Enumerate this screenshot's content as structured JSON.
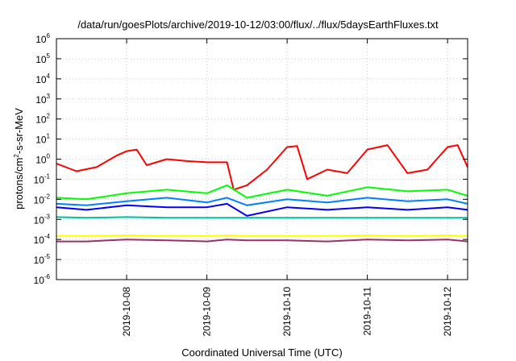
{
  "chart_data": {
    "type": "line",
    "title": "/data/run/goesPlots/archive/2019-10-12/03:00/flux/../flux/5daysEarthFluxes.txt",
    "xlabel": "Coordinated Universal Time (UTC)",
    "ylabel": "protons/cm²-s-sr-MeV",
    "yscale": "log",
    "ylim": [
      1e-06,
      1000000.0
    ],
    "xlim": [
      "2019-10-07T03:00",
      "2019-10-12T06:00"
    ],
    "x_ticks": [
      "2019-10-08",
      "2019-10-09",
      "2019-10-10",
      "2019-10-11",
      "2019-10-12"
    ],
    "y_ticks": [
      {
        "base": "10",
        "exp": "6"
      },
      {
        "base": "10",
        "exp": "5"
      },
      {
        "base": "10",
        "exp": "4"
      },
      {
        "base": "10",
        "exp": "3"
      },
      {
        "base": "10",
        "exp": "2"
      },
      {
        "base": "10",
        "exp": "1"
      },
      {
        "base": "10",
        "exp": "0"
      },
      {
        "base": "10",
        "exp": "-1"
      },
      {
        "base": "10",
        "exp": "-2"
      },
      {
        "base": "10",
        "exp": "-3"
      },
      {
        "base": "10",
        "exp": "-4"
      },
      {
        "base": "10",
        "exp": "-5"
      },
      {
        "base": "10",
        "exp": "-6"
      }
    ],
    "grid": true,
    "series": [
      {
        "color": "#ff0000",
        "x": [
          "2019-10-07T03:00",
          "2019-10-07T09:00",
          "2019-10-07T15:00",
          "2019-10-07T21:00",
          "2019-10-08T00:00",
          "2019-10-08T03:00",
          "2019-10-08T06:00",
          "2019-10-08T12:00",
          "2019-10-08T18:00",
          "2019-10-09T00:00",
          "2019-10-09T06:00",
          "2019-10-09T08:00",
          "2019-10-09T12:00",
          "2019-10-09T18:00",
          "2019-10-10T00:00",
          "2019-10-10T03:00",
          "2019-10-10T06:00",
          "2019-10-10T12:00",
          "2019-10-10T18:00",
          "2019-10-11T00:00",
          "2019-10-11T06:00",
          "2019-10-11T12:00",
          "2019-10-11T18:00",
          "2019-10-12T00:00",
          "2019-10-12T03:00",
          "2019-10-12T06:00"
        ],
        "y": [
          0.6,
          0.25,
          0.4,
          1.5,
          2.5,
          3.0,
          0.5,
          1.0,
          0.8,
          0.7,
          0.7,
          0.03,
          0.05,
          0.3,
          4.0,
          4.5,
          0.1,
          0.3,
          0.2,
          3.0,
          5.0,
          0.2,
          0.3,
          4.0,
          5.0,
          0.4
        ]
      },
      {
        "color": "#00ff00",
        "x": [
          "2019-10-07T03:00",
          "2019-10-07T12:00",
          "2019-10-08T00:00",
          "2019-10-08T12:00",
          "2019-10-09T00:00",
          "2019-10-09T06:00",
          "2019-10-09T12:00",
          "2019-10-10T00:00",
          "2019-10-10T12:00",
          "2019-10-11T00:00",
          "2019-10-11T12:00",
          "2019-10-12T00:00",
          "2019-10-12T06:00"
        ],
        "y": [
          0.012,
          0.01,
          0.02,
          0.03,
          0.02,
          0.05,
          0.012,
          0.03,
          0.015,
          0.04,
          0.025,
          0.03,
          0.015
        ]
      },
      {
        "color": "#0080ff",
        "x": [
          "2019-10-07T03:00",
          "2019-10-07T12:00",
          "2019-10-08T00:00",
          "2019-10-08T12:00",
          "2019-10-09T00:00",
          "2019-10-09T06:00",
          "2019-10-09T12:00",
          "2019-10-10T00:00",
          "2019-10-10T12:00",
          "2019-10-11T00:00",
          "2019-10-11T12:00",
          "2019-10-12T00:00",
          "2019-10-12T06:00"
        ],
        "y": [
          0.006,
          0.005,
          0.008,
          0.012,
          0.007,
          0.012,
          0.005,
          0.01,
          0.007,
          0.012,
          0.008,
          0.01,
          0.006
        ]
      },
      {
        "color": "#0000ff",
        "x": [
          "2019-10-07T03:00",
          "2019-10-07T12:00",
          "2019-10-08T00:00",
          "2019-10-08T12:00",
          "2019-10-09T00:00",
          "2019-10-09T06:00",
          "2019-10-09T12:00",
          "2019-10-10T00:00",
          "2019-10-10T12:00",
          "2019-10-11T00:00",
          "2019-10-11T12:00",
          "2019-10-12T00:00",
          "2019-10-12T06:00"
        ],
        "y": [
          0.004,
          0.003,
          0.005,
          0.004,
          0.004,
          0.006,
          0.0015,
          0.004,
          0.003,
          0.004,
          0.003,
          0.004,
          0.003
        ]
      },
      {
        "color": "#00c0a0",
        "x": [
          "2019-10-07T03:00",
          "2019-10-07T12:00",
          "2019-10-08T00:00",
          "2019-10-08T12:00",
          "2019-10-09T00:00",
          "2019-10-09T06:00",
          "2019-10-09T12:00",
          "2019-10-10T00:00",
          "2019-10-10T12:00",
          "2019-10-11T00:00",
          "2019-10-11T12:00",
          "2019-10-12T00:00",
          "2019-10-12T06:00"
        ],
        "y": [
          0.0013,
          0.0012,
          0.0013,
          0.0012,
          0.0012,
          0.0012,
          0.0012,
          0.0012,
          0.0012,
          0.0012,
          0.0012,
          0.0012,
          0.0012
        ]
      },
      {
        "color": "#ffff00",
        "x": [
          "2019-10-07T03:00",
          "2019-10-07T12:00",
          "2019-10-08T00:00",
          "2019-10-08T12:00",
          "2019-10-09T00:00",
          "2019-10-09T06:00",
          "2019-10-09T12:00",
          "2019-10-10T00:00",
          "2019-10-10T12:00",
          "2019-10-11T00:00",
          "2019-10-11T12:00",
          "2019-10-12T00:00",
          "2019-10-12T06:00"
        ],
        "y": [
          0.00015,
          0.00015,
          0.00016,
          0.00015,
          0.00015,
          0.00016,
          0.00015,
          0.00015,
          0.00015,
          0.00016,
          0.00015,
          0.00016,
          0.00015
        ]
      },
      {
        "color": "#993366",
        "x": [
          "2019-10-07T03:00",
          "2019-10-07T12:00",
          "2019-10-08T00:00",
          "2019-10-08T12:00",
          "2019-10-09T00:00",
          "2019-10-09T06:00",
          "2019-10-09T12:00",
          "2019-10-10T00:00",
          "2019-10-10T12:00",
          "2019-10-11T00:00",
          "2019-10-11T12:00",
          "2019-10-12T00:00",
          "2019-10-12T06:00"
        ],
        "y": [
          8e-05,
          8e-05,
          0.0001,
          9e-05,
          8e-05,
          0.0001,
          9e-05,
          9e-05,
          8e-05,
          0.0001,
          9e-05,
          0.0001,
          8e-05
        ]
      }
    ]
  }
}
